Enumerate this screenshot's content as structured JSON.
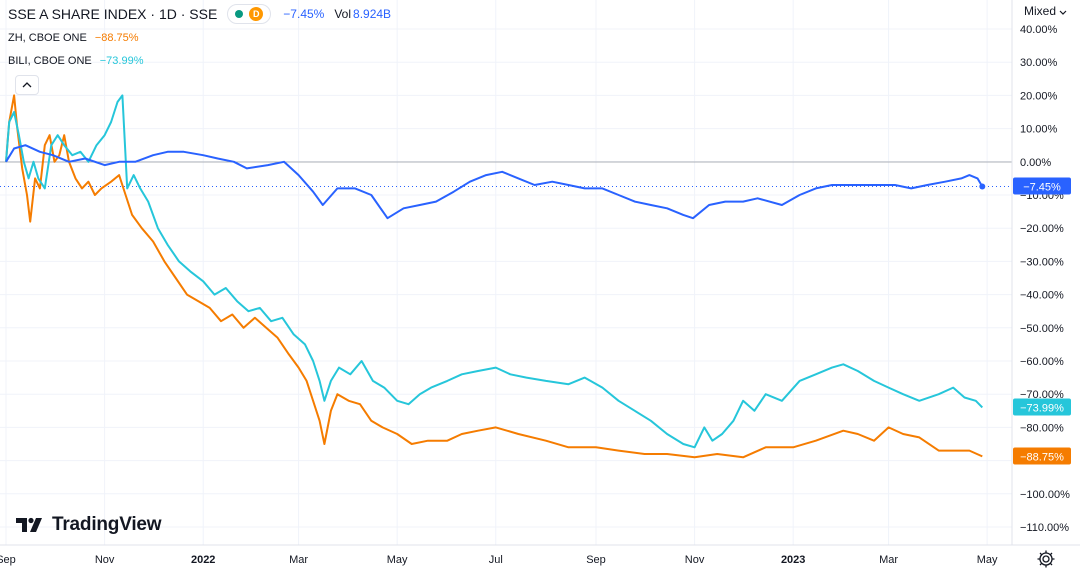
{
  "legend": {
    "main": {
      "symbol": "SSE A SHARE INDEX · 1D · SSE",
      "delay_badge": "D",
      "change": "−7.45%",
      "vol_label": "Vol",
      "vol_value": "8.924B"
    },
    "zh": {
      "symbol": "ZH, CBOE ONE",
      "change": "−88.75%"
    },
    "bili": {
      "symbol": "BILI, CBOE ONE",
      "change": "−73.99%"
    }
  },
  "scale_mode": "Mixed",
  "logo_text": "TradingView",
  "icons": {
    "status": "market-status-icon",
    "collapse": "chevron-up-icon",
    "settings": "gear-icon",
    "logo": "tradingview-logo-icon"
  },
  "colors": {
    "sse": "#2962ff",
    "zh": "#f57c00",
    "bili": "#26c6da",
    "text": "#131722",
    "grid": "#f0f3fa"
  },
  "chart_data": {
    "type": "line",
    "y_unit": "%",
    "ylim": [
      -115,
      42
    ],
    "y_ticks": [
      "40.00%",
      "30.00%",
      "20.00%",
      "10.00%",
      "0.00%",
      "−10.00%",
      "−20.00%",
      "−30.00%",
      "−40.00%",
      "−50.00%",
      "−60.00%",
      "−70.00%",
      "−80.00%",
      "−90.00%",
      "−100.00%",
      "−110.00%"
    ],
    "x_ticks": [
      "Sep",
      "Nov",
      "2022",
      "Mar",
      "May",
      "Jul",
      "Sep",
      "Nov",
      "2023",
      "Mar",
      "May"
    ],
    "x_tick_dates": [
      "2021-09-01",
      "2021-11-01",
      "2022-01-01",
      "2022-03-01",
      "2022-05-01",
      "2022-07-01",
      "2022-09-01",
      "2022-11-01",
      "2023-01-01",
      "2023-03-01",
      "2023-05-01"
    ],
    "xlim": [
      "2021-09-01",
      "2023-05-04"
    ],
    "grid": true,
    "series": [
      {
        "name": "SSE A SHARE INDEX",
        "color": "#2962ff",
        "last_value": -7.45,
        "last_label": "−7.45%",
        "points": [
          [
            "2021-09-01",
            0
          ],
          [
            "2021-09-06",
            4
          ],
          [
            "2021-09-13",
            5
          ],
          [
            "2021-09-22",
            3
          ],
          [
            "2021-09-30",
            2
          ],
          [
            "2021-10-10",
            0
          ],
          [
            "2021-10-20",
            1
          ],
          [
            "2021-11-01",
            -1
          ],
          [
            "2021-11-10",
            0
          ],
          [
            "2021-11-20",
            0
          ],
          [
            "2021-12-01",
            2
          ],
          [
            "2021-12-10",
            3
          ],
          [
            "2021-12-20",
            3
          ],
          [
            "2022-01-01",
            2
          ],
          [
            "2022-01-10",
            1
          ],
          [
            "2022-01-20",
            0
          ],
          [
            "2022-01-28",
            -2
          ],
          [
            "2022-02-10",
            -1
          ],
          [
            "2022-02-20",
            0
          ],
          [
            "2022-03-01",
            -4
          ],
          [
            "2022-03-10",
            -9
          ],
          [
            "2022-03-16",
            -13
          ],
          [
            "2022-03-25",
            -8
          ],
          [
            "2022-04-05",
            -8
          ],
          [
            "2022-04-15",
            -10
          ],
          [
            "2022-04-25",
            -17
          ],
          [
            "2022-05-05",
            -14
          ],
          [
            "2022-05-15",
            -13
          ],
          [
            "2022-05-25",
            -12
          ],
          [
            "2022-06-05",
            -9
          ],
          [
            "2022-06-15",
            -6
          ],
          [
            "2022-06-25",
            -4
          ],
          [
            "2022-07-05",
            -3
          ],
          [
            "2022-07-15",
            -5
          ],
          [
            "2022-07-25",
            -7
          ],
          [
            "2022-08-05",
            -6
          ],
          [
            "2022-08-15",
            -7
          ],
          [
            "2022-08-25",
            -8
          ],
          [
            "2022-09-05",
            -8
          ],
          [
            "2022-09-15",
            -10
          ],
          [
            "2022-09-25",
            -12
          ],
          [
            "2022-10-05",
            -13
          ],
          [
            "2022-10-15",
            -14
          ],
          [
            "2022-10-25",
            -16
          ],
          [
            "2022-10-31",
            -17
          ],
          [
            "2022-11-10",
            -13
          ],
          [
            "2022-11-20",
            -12
          ],
          [
            "2022-12-01",
            -12
          ],
          [
            "2022-12-10",
            -11
          ],
          [
            "2022-12-25",
            -13
          ],
          [
            "2023-01-05",
            -10
          ],
          [
            "2023-01-15",
            -8
          ],
          [
            "2023-01-25",
            -7
          ],
          [
            "2023-02-05",
            -7
          ],
          [
            "2023-02-15",
            -7
          ],
          [
            "2023-02-25",
            -7
          ],
          [
            "2023-03-05",
            -7
          ],
          [
            "2023-03-15",
            -8
          ],
          [
            "2023-03-25",
            -7
          ],
          [
            "2023-04-05",
            -6
          ],
          [
            "2023-04-15",
            -5
          ],
          [
            "2023-04-20",
            -4
          ],
          [
            "2023-04-25",
            -5
          ],
          [
            "2023-04-28",
            -7.45
          ]
        ]
      },
      {
        "name": "ZH",
        "color": "#f57c00",
        "last_value": -88.75,
        "last_label": "−88.75%",
        "points": [
          [
            "2021-09-01",
            0
          ],
          [
            "2021-09-03",
            12
          ],
          [
            "2021-09-06",
            20
          ],
          [
            "2021-09-08",
            10
          ],
          [
            "2021-09-11",
            -2
          ],
          [
            "2021-09-14",
            -10
          ],
          [
            "2021-09-16",
            -18
          ],
          [
            "2021-09-19",
            -5
          ],
          [
            "2021-09-22",
            -8
          ],
          [
            "2021-09-25",
            5
          ],
          [
            "2021-09-28",
            8
          ],
          [
            "2021-10-01",
            0
          ],
          [
            "2021-10-04",
            2
          ],
          [
            "2021-10-07",
            8
          ],
          [
            "2021-10-10",
            0
          ],
          [
            "2021-10-14",
            -5
          ],
          [
            "2021-10-18",
            -8
          ],
          [
            "2021-10-22",
            -6
          ],
          [
            "2021-10-26",
            -10
          ],
          [
            "2021-10-30",
            -8
          ],
          [
            "2021-11-05",
            -6
          ],
          [
            "2021-11-10",
            -4
          ],
          [
            "2021-11-14",
            -10
          ],
          [
            "2021-11-18",
            -16
          ],
          [
            "2021-11-24",
            -20
          ],
          [
            "2021-12-01",
            -24
          ],
          [
            "2021-12-08",
            -30
          ],
          [
            "2021-12-15",
            -35
          ],
          [
            "2021-12-22",
            -40
          ],
          [
            "2021-12-29",
            -42
          ],
          [
            "2022-01-05",
            -44
          ],
          [
            "2022-01-12",
            -48
          ],
          [
            "2022-01-19",
            -46
          ],
          [
            "2022-01-26",
            -50
          ],
          [
            "2022-02-02",
            -47
          ],
          [
            "2022-02-09",
            -50
          ],
          [
            "2022-02-16",
            -53
          ],
          [
            "2022-02-23",
            -58
          ],
          [
            "2022-03-01",
            -62
          ],
          [
            "2022-03-06",
            -66
          ],
          [
            "2022-03-10",
            -72
          ],
          [
            "2022-03-14",
            -78
          ],
          [
            "2022-03-17",
            -85
          ],
          [
            "2022-03-21",
            -75
          ],
          [
            "2022-03-25",
            -70
          ],
          [
            "2022-04-01",
            -72
          ],
          [
            "2022-04-08",
            -73
          ],
          [
            "2022-04-15",
            -78
          ],
          [
            "2022-04-22",
            -80
          ],
          [
            "2022-05-01",
            -82
          ],
          [
            "2022-05-10",
            -85
          ],
          [
            "2022-05-20",
            -84
          ],
          [
            "2022-06-01",
            -84
          ],
          [
            "2022-06-10",
            -82
          ],
          [
            "2022-06-20",
            -81
          ],
          [
            "2022-07-01",
            -80
          ],
          [
            "2022-07-15",
            -82
          ],
          [
            "2022-08-01",
            -84
          ],
          [
            "2022-08-15",
            -86
          ],
          [
            "2022-09-01",
            -86
          ],
          [
            "2022-09-15",
            -87
          ],
          [
            "2022-10-01",
            -88
          ],
          [
            "2022-10-15",
            -88
          ],
          [
            "2022-11-01",
            -89
          ],
          [
            "2022-11-15",
            -88
          ],
          [
            "2022-12-01",
            -89
          ],
          [
            "2022-12-15",
            -86
          ],
          [
            "2023-01-01",
            -86
          ],
          [
            "2023-01-15",
            -84
          ],
          [
            "2023-02-01",
            -81
          ],
          [
            "2023-02-10",
            -82
          ],
          [
            "2023-02-20",
            -84
          ],
          [
            "2023-03-01",
            -80
          ],
          [
            "2023-03-10",
            -82
          ],
          [
            "2023-03-20",
            -83
          ],
          [
            "2023-04-01",
            -87
          ],
          [
            "2023-04-10",
            -87
          ],
          [
            "2023-04-20",
            -87
          ],
          [
            "2023-04-28",
            -88.75
          ]
        ]
      },
      {
        "name": "BILI",
        "color": "#26c6da",
        "last_value": -73.99,
        "last_label": "−73.99%",
        "points": [
          [
            "2021-09-01",
            0
          ],
          [
            "2021-09-03",
            12
          ],
          [
            "2021-09-06",
            15
          ],
          [
            "2021-09-09",
            8
          ],
          [
            "2021-09-12",
            0
          ],
          [
            "2021-09-15",
            -5
          ],
          [
            "2021-09-18",
            0
          ],
          [
            "2021-09-21",
            -5
          ],
          [
            "2021-09-25",
            -8
          ],
          [
            "2021-09-29",
            5
          ],
          [
            "2021-10-03",
            8
          ],
          [
            "2021-10-07",
            5
          ],
          [
            "2021-10-12",
            2
          ],
          [
            "2021-10-17",
            3
          ],
          [
            "2021-10-22",
            0
          ],
          [
            "2021-10-27",
            5
          ],
          [
            "2021-11-01",
            8
          ],
          [
            "2021-11-05",
            12
          ],
          [
            "2021-11-09",
            18
          ],
          [
            "2021-11-12",
            20
          ],
          [
            "2021-11-15",
            -8
          ],
          [
            "2021-11-19",
            -4
          ],
          [
            "2021-11-23",
            -8
          ],
          [
            "2021-11-28",
            -12
          ],
          [
            "2021-12-04",
            -20
          ],
          [
            "2021-12-10",
            -25
          ],
          [
            "2021-12-17",
            -30
          ],
          [
            "2021-12-24",
            -33
          ],
          [
            "2022-01-01",
            -36
          ],
          [
            "2022-01-08",
            -40
          ],
          [
            "2022-01-15",
            -38
          ],
          [
            "2022-01-22",
            -42
          ],
          [
            "2022-01-29",
            -45
          ],
          [
            "2022-02-05",
            -44
          ],
          [
            "2022-02-12",
            -48
          ],
          [
            "2022-02-19",
            -47
          ],
          [
            "2022-02-26",
            -52
          ],
          [
            "2022-03-05",
            -55
          ],
          [
            "2022-03-10",
            -60
          ],
          [
            "2022-03-14",
            -66
          ],
          [
            "2022-03-17",
            -72
          ],
          [
            "2022-03-21",
            -66
          ],
          [
            "2022-03-26",
            -62
          ],
          [
            "2022-04-02",
            -64
          ],
          [
            "2022-04-09",
            -60
          ],
          [
            "2022-04-16",
            -66
          ],
          [
            "2022-04-23",
            -68
          ],
          [
            "2022-05-01",
            -72
          ],
          [
            "2022-05-08",
            -73
          ],
          [
            "2022-05-15",
            -70
          ],
          [
            "2022-05-22",
            -68
          ],
          [
            "2022-06-01",
            -66
          ],
          [
            "2022-06-10",
            -64
          ],
          [
            "2022-06-20",
            -63
          ],
          [
            "2022-07-01",
            -62
          ],
          [
            "2022-07-10",
            -64
          ],
          [
            "2022-07-20",
            -65
          ],
          [
            "2022-08-01",
            -66
          ],
          [
            "2022-08-15",
            -67
          ],
          [
            "2022-08-25",
            -65
          ],
          [
            "2022-09-05",
            -68
          ],
          [
            "2022-09-15",
            -72
          ],
          [
            "2022-09-25",
            -75
          ],
          [
            "2022-10-05",
            -78
          ],
          [
            "2022-10-15",
            -82
          ],
          [
            "2022-10-25",
            -85
          ],
          [
            "2022-11-01",
            -86
          ],
          [
            "2022-11-07",
            -80
          ],
          [
            "2022-11-12",
            -84
          ],
          [
            "2022-11-18",
            -82
          ],
          [
            "2022-11-25",
            -78
          ],
          [
            "2022-12-01",
            -72
          ],
          [
            "2022-12-08",
            -75
          ],
          [
            "2022-12-15",
            -70
          ],
          [
            "2022-12-25",
            -72
          ],
          [
            "2023-01-05",
            -66
          ],
          [
            "2023-01-15",
            -64
          ],
          [
            "2023-01-25",
            -62
          ],
          [
            "2023-02-01",
            -61
          ],
          [
            "2023-02-10",
            -63
          ],
          [
            "2023-02-20",
            -66
          ],
          [
            "2023-03-01",
            -68
          ],
          [
            "2023-03-10",
            -70
          ],
          [
            "2023-03-20",
            -72
          ],
          [
            "2023-04-01",
            -70
          ],
          [
            "2023-04-10",
            -68
          ],
          [
            "2023-04-17",
            -71
          ],
          [
            "2023-04-24",
            -72
          ],
          [
            "2023-04-28",
            -73.99
          ]
        ]
      }
    ]
  }
}
